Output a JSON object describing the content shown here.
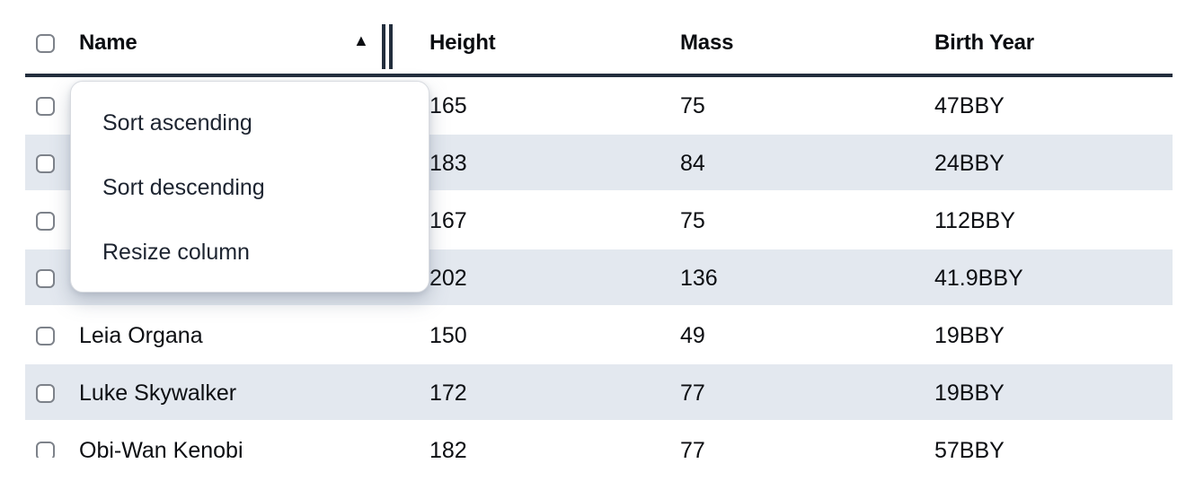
{
  "theme": {
    "header-border": "#232e3d",
    "stripe": "#e3e8ef",
    "text": "#0c0e12",
    "menu-text": "#1d2430",
    "checkbox-border": "#7d828a",
    "menu-border": "#d8dbe0"
  },
  "table": {
    "sort_indicator": "▲",
    "sorted_column": "Name",
    "columns": [
      {
        "label": "Name"
      },
      {
        "label": "Height"
      },
      {
        "label": "Mass"
      },
      {
        "label": "Birth Year"
      }
    ],
    "rows": [
      {
        "name": "",
        "height": "165",
        "mass": "75",
        "birth_year": "47BBY"
      },
      {
        "name": "",
        "height": "183",
        "mass": "84",
        "birth_year": "24BBY"
      },
      {
        "name": "",
        "height": "167",
        "mass": "75",
        "birth_year": "112BBY"
      },
      {
        "name": "",
        "height": "202",
        "mass": "136",
        "birth_year": "41.9BBY"
      },
      {
        "name": "Leia Organa",
        "height": "150",
        "mass": "49",
        "birth_year": "19BBY"
      },
      {
        "name": "Luke Skywalker",
        "height": "172",
        "mass": "77",
        "birth_year": "19BBY"
      },
      {
        "name": "Obi-Wan Kenobi",
        "height": "182",
        "mass": "77",
        "birth_year": "57BBY"
      }
    ]
  },
  "context_menu": {
    "items": [
      "Sort ascending",
      "Sort descending",
      "Resize column"
    ]
  }
}
